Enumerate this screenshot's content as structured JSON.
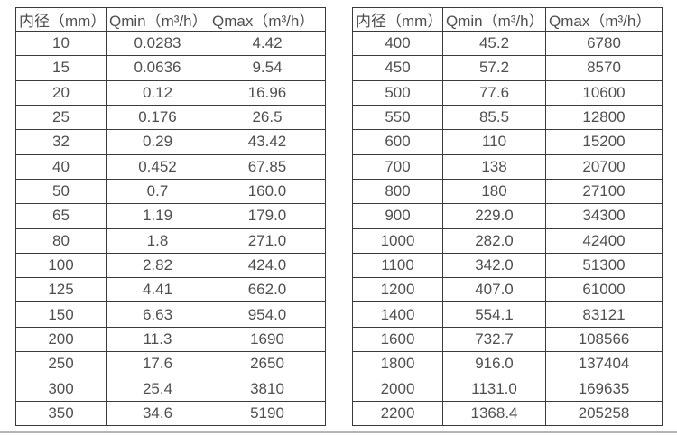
{
  "colors": {
    "table_border": "#3b3b3b",
    "text": "#4f4f4f",
    "bottom_rule": "#b5b5b5",
    "background": "#ffffff"
  },
  "tables": [
    {
      "headers": [
        "内径（mm）",
        "Qmin（m³/h）",
        "Qmax（m³/h）"
      ],
      "rows": [
        [
          "10",
          "0.0283",
          "4.42"
        ],
        [
          "15",
          "0.0636",
          "9.54"
        ],
        [
          "20",
          "0.12",
          "16.96"
        ],
        [
          "25",
          "0.176",
          "26.5"
        ],
        [
          "32",
          "0.29",
          "43.42"
        ],
        [
          "40",
          "0.452",
          "67.85"
        ],
        [
          "50",
          "0.7",
          "160.0"
        ],
        [
          "65",
          "1.19",
          "179.0"
        ],
        [
          "80",
          "1.8",
          "271.0"
        ],
        [
          "100",
          "2.82",
          "424.0"
        ],
        [
          "125",
          "4.41",
          "662.0"
        ],
        [
          "150",
          "6.63",
          "954.0"
        ],
        [
          "200",
          "11.3",
          "1690"
        ],
        [
          "250",
          "17.6",
          "2650"
        ],
        [
          "300",
          "25.4",
          "3810"
        ],
        [
          "350",
          "34.6",
          "5190"
        ]
      ]
    },
    {
      "headers": [
        "内径（mm）",
        "Qmin（m³/h）",
        "Qmax（m³/h）"
      ],
      "rows": [
        [
          "400",
          "45.2",
          "6780"
        ],
        [
          "450",
          "57.2",
          "8570"
        ],
        [
          "500",
          "77.6",
          "10600"
        ],
        [
          "550",
          "85.5",
          "12800"
        ],
        [
          "600",
          "110",
          "15200"
        ],
        [
          "700",
          "138",
          "20700"
        ],
        [
          "800",
          "180",
          "27100"
        ],
        [
          "900",
          "229.0",
          "34300"
        ],
        [
          "1000",
          "282.0",
          "42400"
        ],
        [
          "1100",
          "342.0",
          "51300"
        ],
        [
          "1200",
          "407.0",
          "61000"
        ],
        [
          "1400",
          "554.1",
          "83121"
        ],
        [
          "1600",
          "732.7",
          "108566"
        ],
        [
          "1800",
          "916.0",
          "137404"
        ],
        [
          "2000",
          "1131.0",
          "169635"
        ],
        [
          "2200",
          "1368.4",
          "205258"
        ]
      ]
    }
  ]
}
